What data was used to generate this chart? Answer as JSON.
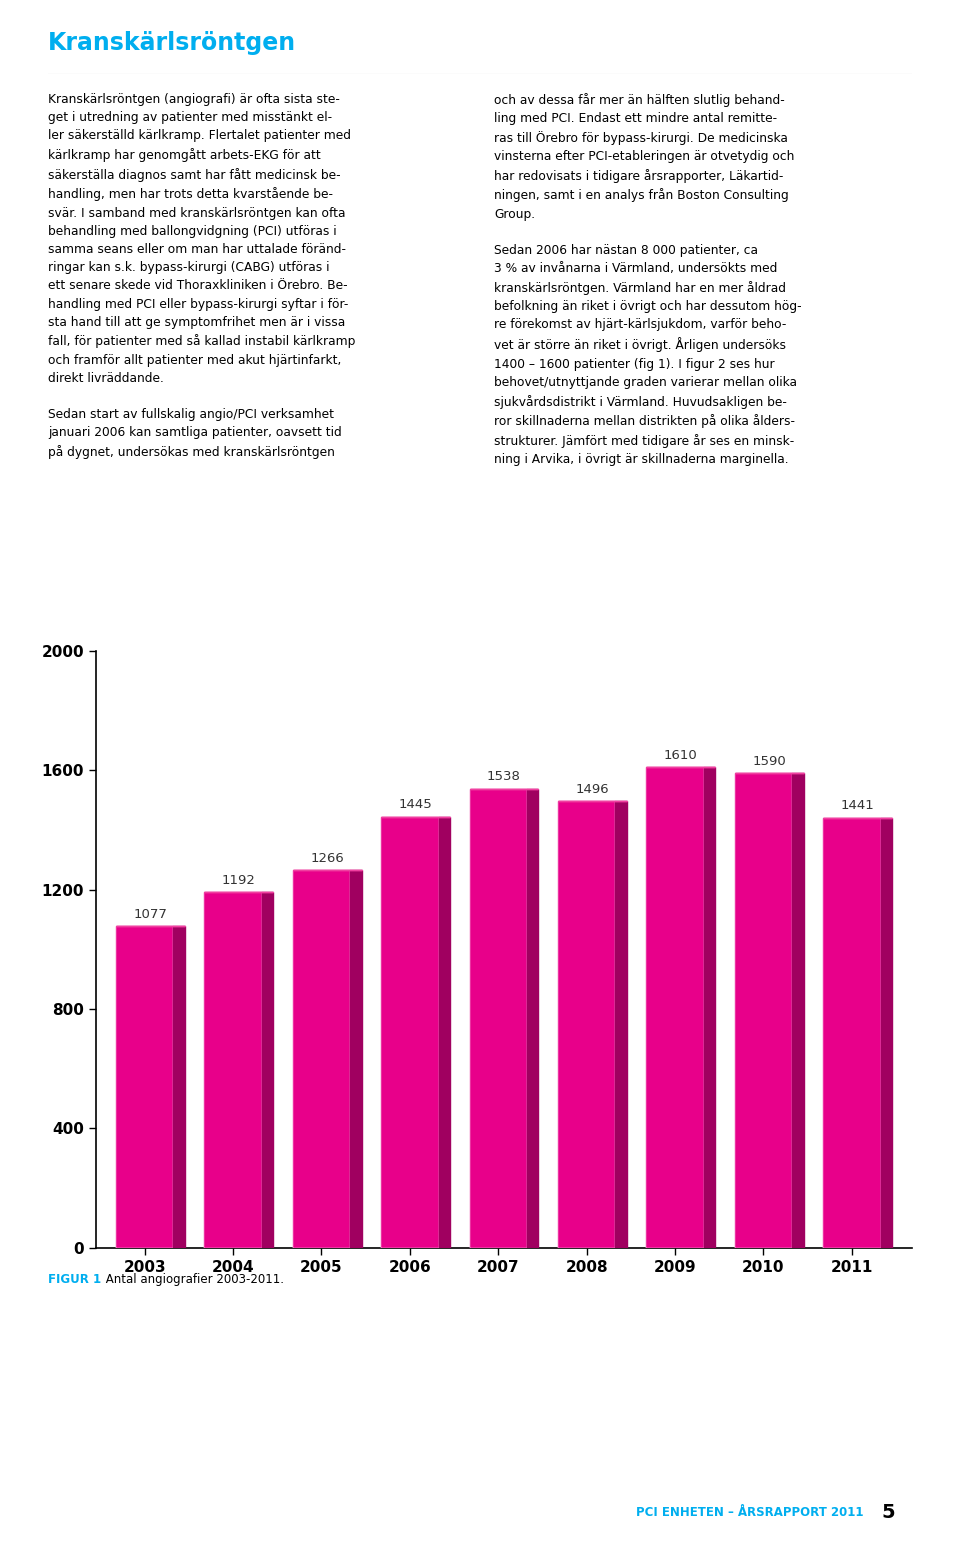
{
  "title": "Kranskärlsröntgen",
  "title_color": "#00AEEF",
  "title_fontsize": 17,
  "text_left_col": [
    "Kranskärlsröntgen (angiografi) är ofta sista ste-",
    "get i utredning av patienter med misstänkt el-",
    "ler säkerställd kärlkramp. Flertalet patienter med",
    "kärlkramp har genomgått arbets-EKG för att",
    "säkerställa diagnos samt har fått medicinsk be-",
    "handling, men har trots detta kvarstående be-",
    "svär. I samband med kranskärlsröntgen kan ofta",
    "behandling med ballongvidgning (PCI) utföras i",
    "samma seans eller om man har uttalade föränd-",
    "ringar kan s.k. bypass-kirurgi (CABG) utföras i",
    "ett senare skede vid Thoraxkliniken i Örebro. Be-",
    "handling med PCI eller bypass-kirurgi syftar i för-",
    "sta hand till att ge symptomfrihet men är i vissa",
    "fall, för patienter med så kallad instabil kärlkramp",
    "och framför allt patienter med akut hjärtinfarkt,",
    "direkt livräddande.",
    "",
    "Sedan start av fullskalig angio/PCI verksamhet",
    "januari 2006 kan samtliga patienter, oavsett tid",
    "på dygnet, undersökas med kranskärlsröntgen"
  ],
  "text_right_col": [
    "och av dessa får mer än hälften slutlig behand-",
    "ling med PCI. Endast ett mindre antal remitte-",
    "ras till Örebro för bypass-kirurgi. De medicinska",
    "vinsterna efter PCI-etableringen är otvetydig och",
    "har redovisats i tidigare årsrapporter, Läkartid-",
    "ningen, samt i en analys från Boston Consulting",
    "Group.",
    "",
    "Sedan 2006 har nästan 8 000 patienter, ca",
    "3 % av invånarna i Värmland, undersökts med",
    "kranskärlsröntgen. Värmland har en mer åldrad",
    "befolkning än riket i övrigt och har dessutom hög-",
    "re förekomst av hjärt-kärlsjukdom, varför beho-",
    "vet är större än riket i övrigt. Årligen undersöks",
    "1400 – 1600 patienter (fig 1). I figur 2 ses hur",
    "behovet/utnyttjande graden varierar mellan olika",
    "sjukvårdsdistrikt i Värmland. Huvudsakligen be-",
    "ror skillnaderna mellan distrikten på olika ålders-",
    "strukturer. Jämfört med tidigare år ses en minsk-",
    "ning i Arvika, i övrigt är skillnaderna marginella."
  ],
  "chart_years": [
    "2003",
    "2004",
    "2005",
    "2006",
    "2007",
    "2008",
    "2009",
    "2010",
    "2011"
  ],
  "chart_values": [
    1077,
    1192,
    1266,
    1445,
    1538,
    1496,
    1610,
    1590,
    1441
  ],
  "bar_color_face": "#E8008A",
  "bar_color_dark": "#A00060",
  "bar_color_top": "#F040A0",
  "bar_width": 0.65,
  "ylim": [
    0,
    2000
  ],
  "yticks": [
    0,
    400,
    800,
    1200,
    1600,
    2000
  ],
  "figcaption_bold": "FIGUR 1",
  "figcaption_bold_color": "#00AEEF",
  "figcaption_text": " Antal angiografier 2003-2011.",
  "footer_text": "PCI ENHETEN – ÅRSRAPPORT 2011",
  "footer_page": "5",
  "footer_color": "#00AEEF",
  "background_color": "#ffffff"
}
